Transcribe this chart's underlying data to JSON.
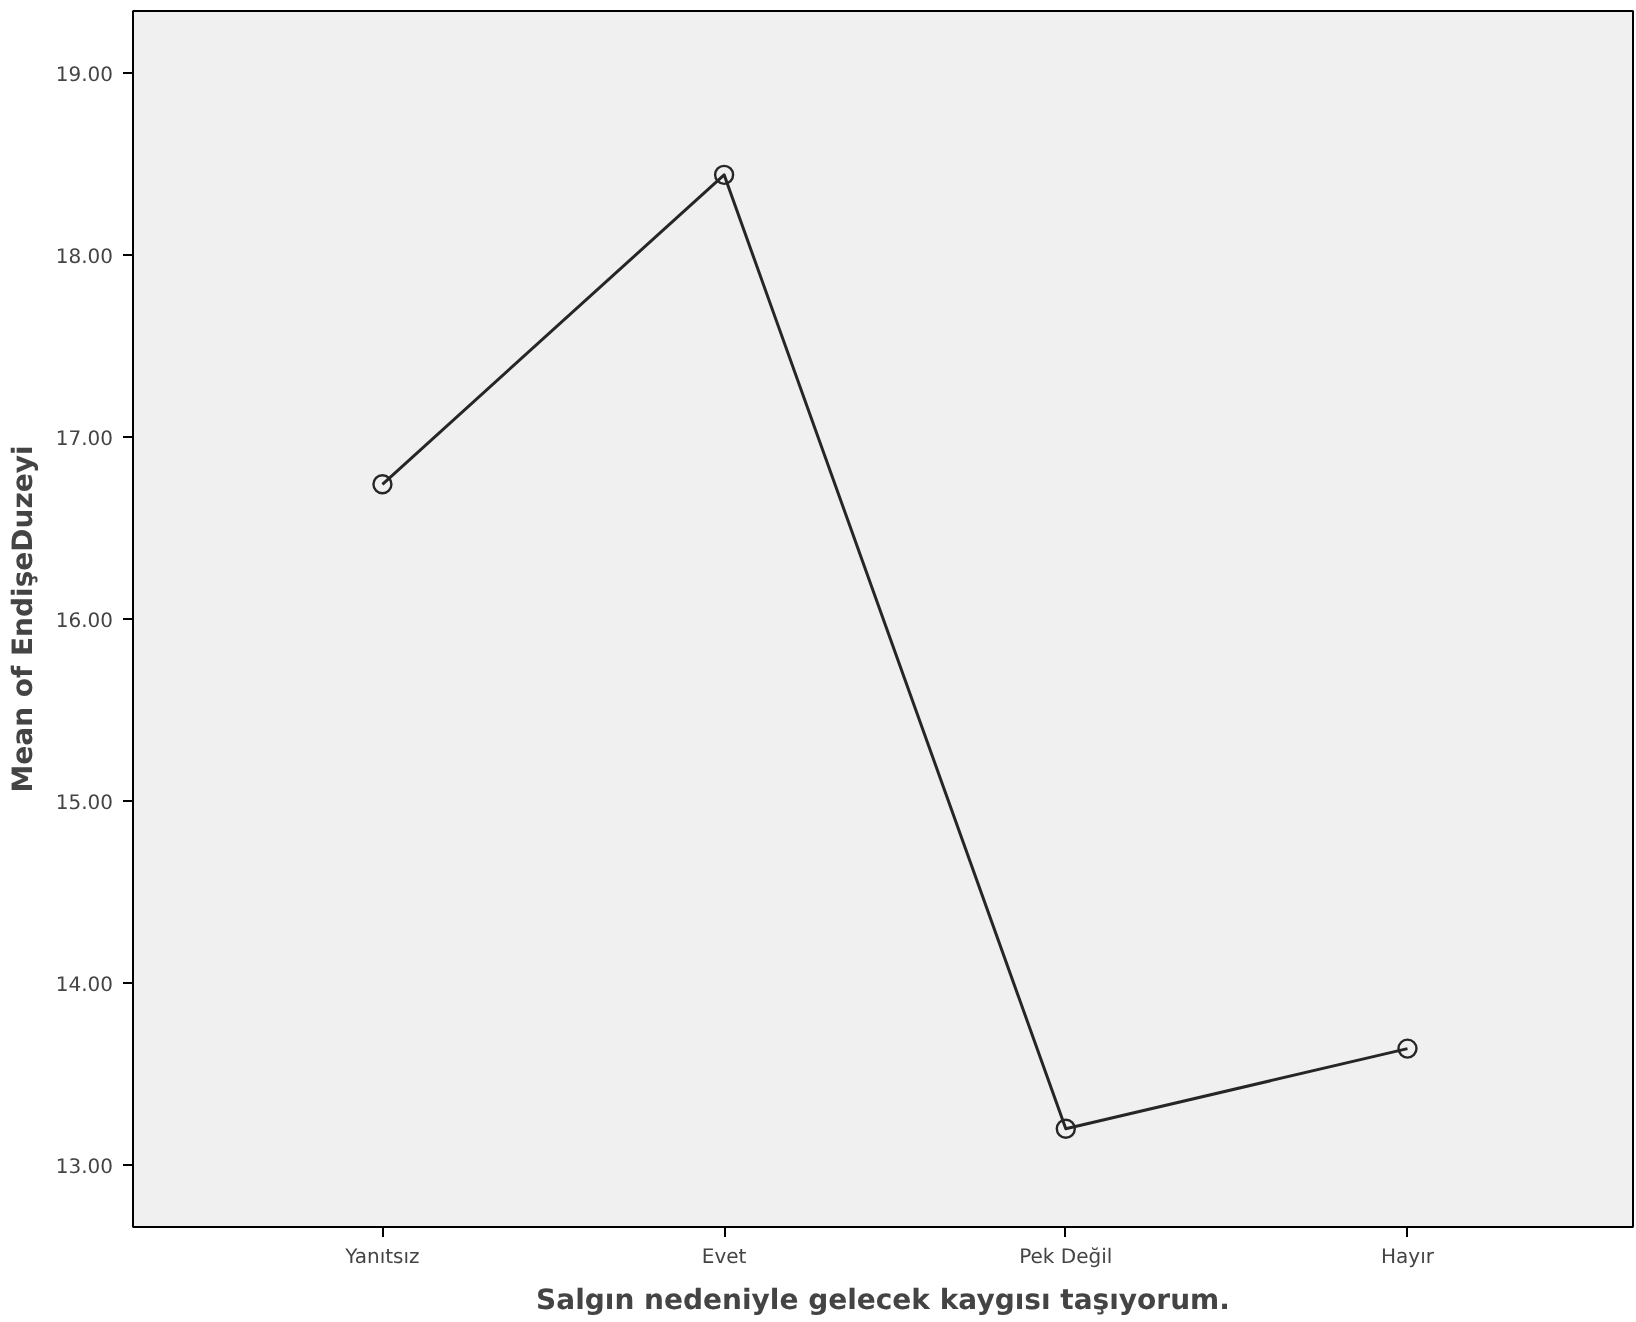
{
  "chart_data": {
    "type": "line",
    "xlabel": "Salgın nedeniyle gelecek kaygısı taşıyorum.",
    "ylabel": "Mean of EndişeDuzeyi",
    "categories": [
      "Yanıtsız",
      "Evet",
      "Pek Değil",
      "Hayır"
    ],
    "series": [
      {
        "color": "#262626",
        "values": [
          16.74,
          18.44,
          13.2,
          13.64
        ]
      }
    ],
    "ylim": [
      12.66,
      19.34
    ],
    "yticks": [
      {
        "value": 13,
        "label": "13.00"
      },
      {
        "value": 14,
        "label": "14.00"
      },
      {
        "value": 15,
        "label": "15.00"
      },
      {
        "value": 16,
        "label": "16.00"
      },
      {
        "value": 17,
        "label": "17.00"
      },
      {
        "value": 18,
        "label": "18.00"
      },
      {
        "value": 19,
        "label": "19.00"
      }
    ],
    "grid": false,
    "marker": "circle",
    "line_style": "solid"
  }
}
